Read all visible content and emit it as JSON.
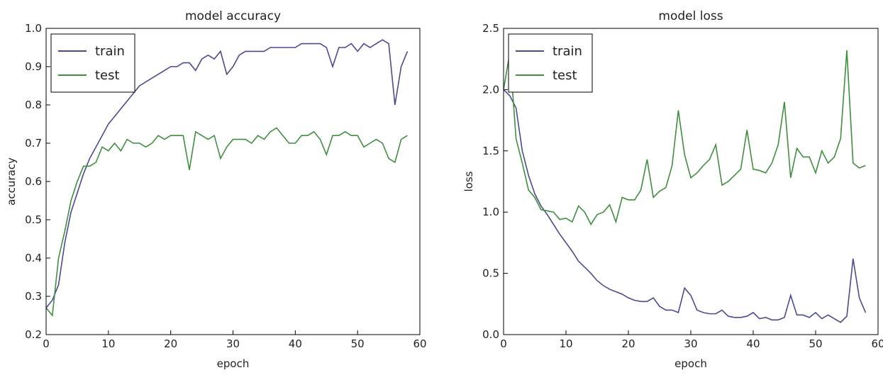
{
  "chart_data": [
    {
      "type": "line",
      "title": "model accuracy",
      "xlabel": "epoch",
      "ylabel": "accuracy",
      "x": [
        0,
        1,
        2,
        3,
        4,
        5,
        6,
        7,
        8,
        9,
        10,
        11,
        12,
        13,
        14,
        15,
        16,
        17,
        18,
        19,
        20,
        21,
        22,
        23,
        24,
        25,
        26,
        27,
        28,
        29,
        30,
        31,
        32,
        33,
        34,
        35,
        36,
        37,
        38,
        39,
        40,
        41,
        42,
        43,
        44,
        45,
        46,
        47,
        48,
        49,
        50,
        51,
        52,
        53,
        54,
        55,
        56,
        57,
        58
      ],
      "series": [
        {
          "name": "train",
          "color": "#4a4a92",
          "values": [
            0.27,
            0.29,
            0.33,
            0.44,
            0.52,
            0.57,
            0.62,
            0.66,
            0.69,
            0.72,
            0.75,
            0.77,
            0.79,
            0.81,
            0.83,
            0.85,
            0.86,
            0.87,
            0.88,
            0.89,
            0.9,
            0.9,
            0.91,
            0.91,
            0.89,
            0.92,
            0.93,
            0.92,
            0.94,
            0.88,
            0.9,
            0.93,
            0.94,
            0.94,
            0.94,
            0.94,
            0.95,
            0.95,
            0.95,
            0.95,
            0.95,
            0.96,
            0.96,
            0.96,
            0.96,
            0.95,
            0.9,
            0.95,
            0.95,
            0.96,
            0.94,
            0.96,
            0.95,
            0.96,
            0.97,
            0.96,
            0.8,
            0.9,
            0.94
          ]
        },
        {
          "name": "test",
          "color": "#3f8f3f",
          "values": [
            0.27,
            0.25,
            0.4,
            0.47,
            0.55,
            0.6,
            0.64,
            0.64,
            0.65,
            0.69,
            0.68,
            0.7,
            0.68,
            0.71,
            0.7,
            0.7,
            0.69,
            0.7,
            0.72,
            0.71,
            0.72,
            0.72,
            0.72,
            0.63,
            0.73,
            0.72,
            0.71,
            0.72,
            0.66,
            0.69,
            0.71,
            0.71,
            0.71,
            0.7,
            0.72,
            0.71,
            0.73,
            0.74,
            0.72,
            0.7,
            0.7,
            0.72,
            0.72,
            0.73,
            0.71,
            0.67,
            0.72,
            0.72,
            0.73,
            0.72,
            0.72,
            0.69,
            0.7,
            0.71,
            0.7,
            0.66,
            0.65,
            0.71,
            0.72
          ]
        }
      ],
      "xlim": [
        0,
        60
      ],
      "xticks": [
        0,
        10,
        20,
        30,
        40,
        50,
        60
      ],
      "ylim": [
        0.2,
        1
      ],
      "yticks": [
        0.2,
        0.3,
        0.4,
        0.5,
        0.6,
        0.7,
        0.8,
        0.9,
        {
          "value": 1,
          "label": "1.0"
        }
      ],
      "legend": "upper left"
    },
    {
      "type": "line",
      "title": "model loss",
      "xlabel": "epoch",
      "ylabel": "loss",
      "x": [
        0,
        1,
        2,
        3,
        4,
        5,
        6,
        7,
        8,
        9,
        10,
        11,
        12,
        13,
        14,
        15,
        16,
        17,
        18,
        19,
        20,
        21,
        22,
        23,
        24,
        25,
        26,
        27,
        28,
        29,
        30,
        31,
        32,
        33,
        34,
        35,
        36,
        37,
        38,
        39,
        40,
        41,
        42,
        43,
        44,
        45,
        46,
        47,
        48,
        49,
        50,
        51,
        52,
        53,
        54,
        55,
        56,
        57,
        58
      ],
      "series": [
        {
          "name": "train",
          "color": "#4a4a92",
          "values": [
            2.0,
            1.95,
            1.85,
            1.5,
            1.3,
            1.15,
            1.05,
            0.98,
            0.9,
            0.82,
            0.75,
            0.68,
            0.6,
            0.55,
            0.5,
            0.44,
            0.4,
            0.37,
            0.35,
            0.33,
            0.3,
            0.28,
            0.27,
            0.27,
            0.3,
            0.23,
            0.2,
            0.2,
            0.18,
            0.38,
            0.32,
            0.2,
            0.18,
            0.17,
            0.17,
            0.2,
            0.15,
            0.14,
            0.14,
            0.15,
            0.18,
            0.13,
            0.14,
            0.12,
            0.12,
            0.14,
            0.32,
            0.16,
            0.16,
            0.14,
            0.18,
            0.13,
            0.16,
            0.13,
            0.1,
            0.15,
            0.62,
            0.3,
            0.18
          ]
        },
        {
          "name": "test",
          "color": "#3f8f3f",
          "values": [
            2.0,
            2.3,
            1.6,
            1.4,
            1.18,
            1.12,
            1.02,
            1.01,
            1.0,
            0.94,
            0.95,
            0.92,
            1.05,
            1.0,
            0.9,
            0.98,
            1.0,
            1.06,
            0.92,
            1.12,
            1.1,
            1.1,
            1.18,
            1.43,
            1.12,
            1.17,
            1.2,
            1.38,
            1.83,
            1.47,
            1.28,
            1.32,
            1.38,
            1.43,
            1.55,
            1.22,
            1.25,
            1.3,
            1.35,
            1.67,
            1.35,
            1.34,
            1.32,
            1.4,
            1.55,
            1.9,
            1.28,
            1.52,
            1.45,
            1.45,
            1.32,
            1.5,
            1.4,
            1.45,
            1.6,
            2.32,
            1.4,
            1.36,
            1.38
          ]
        }
      ],
      "xlim": [
        0,
        60
      ],
      "xticks": [
        0,
        10,
        20,
        30,
        40,
        50,
        60
      ],
      "ylim": [
        0,
        2.5
      ],
      "yticks": [
        {
          "value": 0,
          "label": "0.0"
        },
        0.5,
        {
          "value": 1,
          "label": "1.0"
        },
        1.5,
        {
          "value": 2,
          "label": "2.0"
        },
        2.5
      ],
      "legend": "upper left"
    }
  ]
}
